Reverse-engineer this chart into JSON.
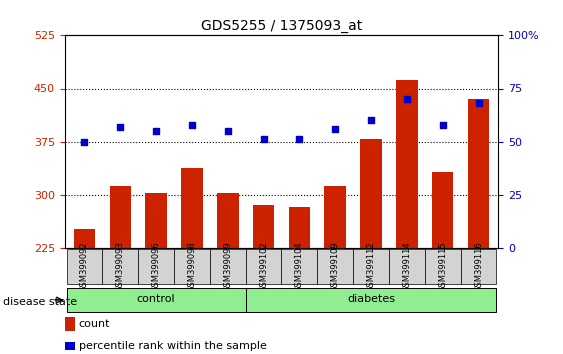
{
  "title": "GDS5255 / 1375093_at",
  "samples": [
    "GSM399092",
    "GSM399093",
    "GSM399096",
    "GSM399098",
    "GSM399099",
    "GSM399102",
    "GSM399104",
    "GSM399109",
    "GSM399112",
    "GSM399114",
    "GSM399115",
    "GSM399116"
  ],
  "counts": [
    252,
    312,
    302,
    338,
    302,
    285,
    283,
    312,
    378,
    462,
    332,
    435
  ],
  "percentile": [
    50,
    57,
    55,
    58,
    55,
    51,
    51,
    56,
    60,
    70,
    58,
    68
  ],
  "y_min": 225,
  "y_max": 525,
  "y_ticks": [
    225,
    300,
    375,
    450,
    525
  ],
  "y2_ticks": [
    0,
    25,
    50,
    75,
    100
  ],
  "bar_color": "#CC2200",
  "dot_color": "#0000CC",
  "green_color": "#90EE90",
  "n_control": 5,
  "n_diabetes": 7,
  "control_label": "control",
  "diabetes_label": "diabetes",
  "legend_count": "count",
  "legend_percentile": "percentile rank within the sample",
  "grid_lines": [
    300,
    375,
    450
  ],
  "disease_label": "disease state"
}
